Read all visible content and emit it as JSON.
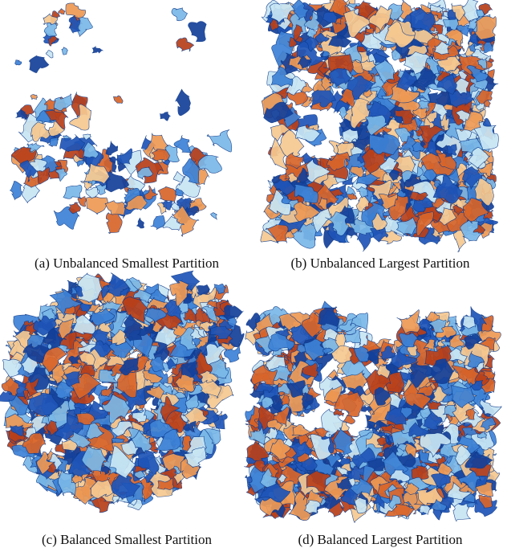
{
  "figure": {
    "panels": [
      {
        "caption": "(a) Unbalanced Smallest Partition"
      },
      {
        "caption": "(b) Unbalanced Largest Partition"
      },
      {
        "caption": "(c) Balanced Smallest Partition"
      },
      {
        "caption": "(d) Balanced Largest Partition"
      }
    ]
  }
}
